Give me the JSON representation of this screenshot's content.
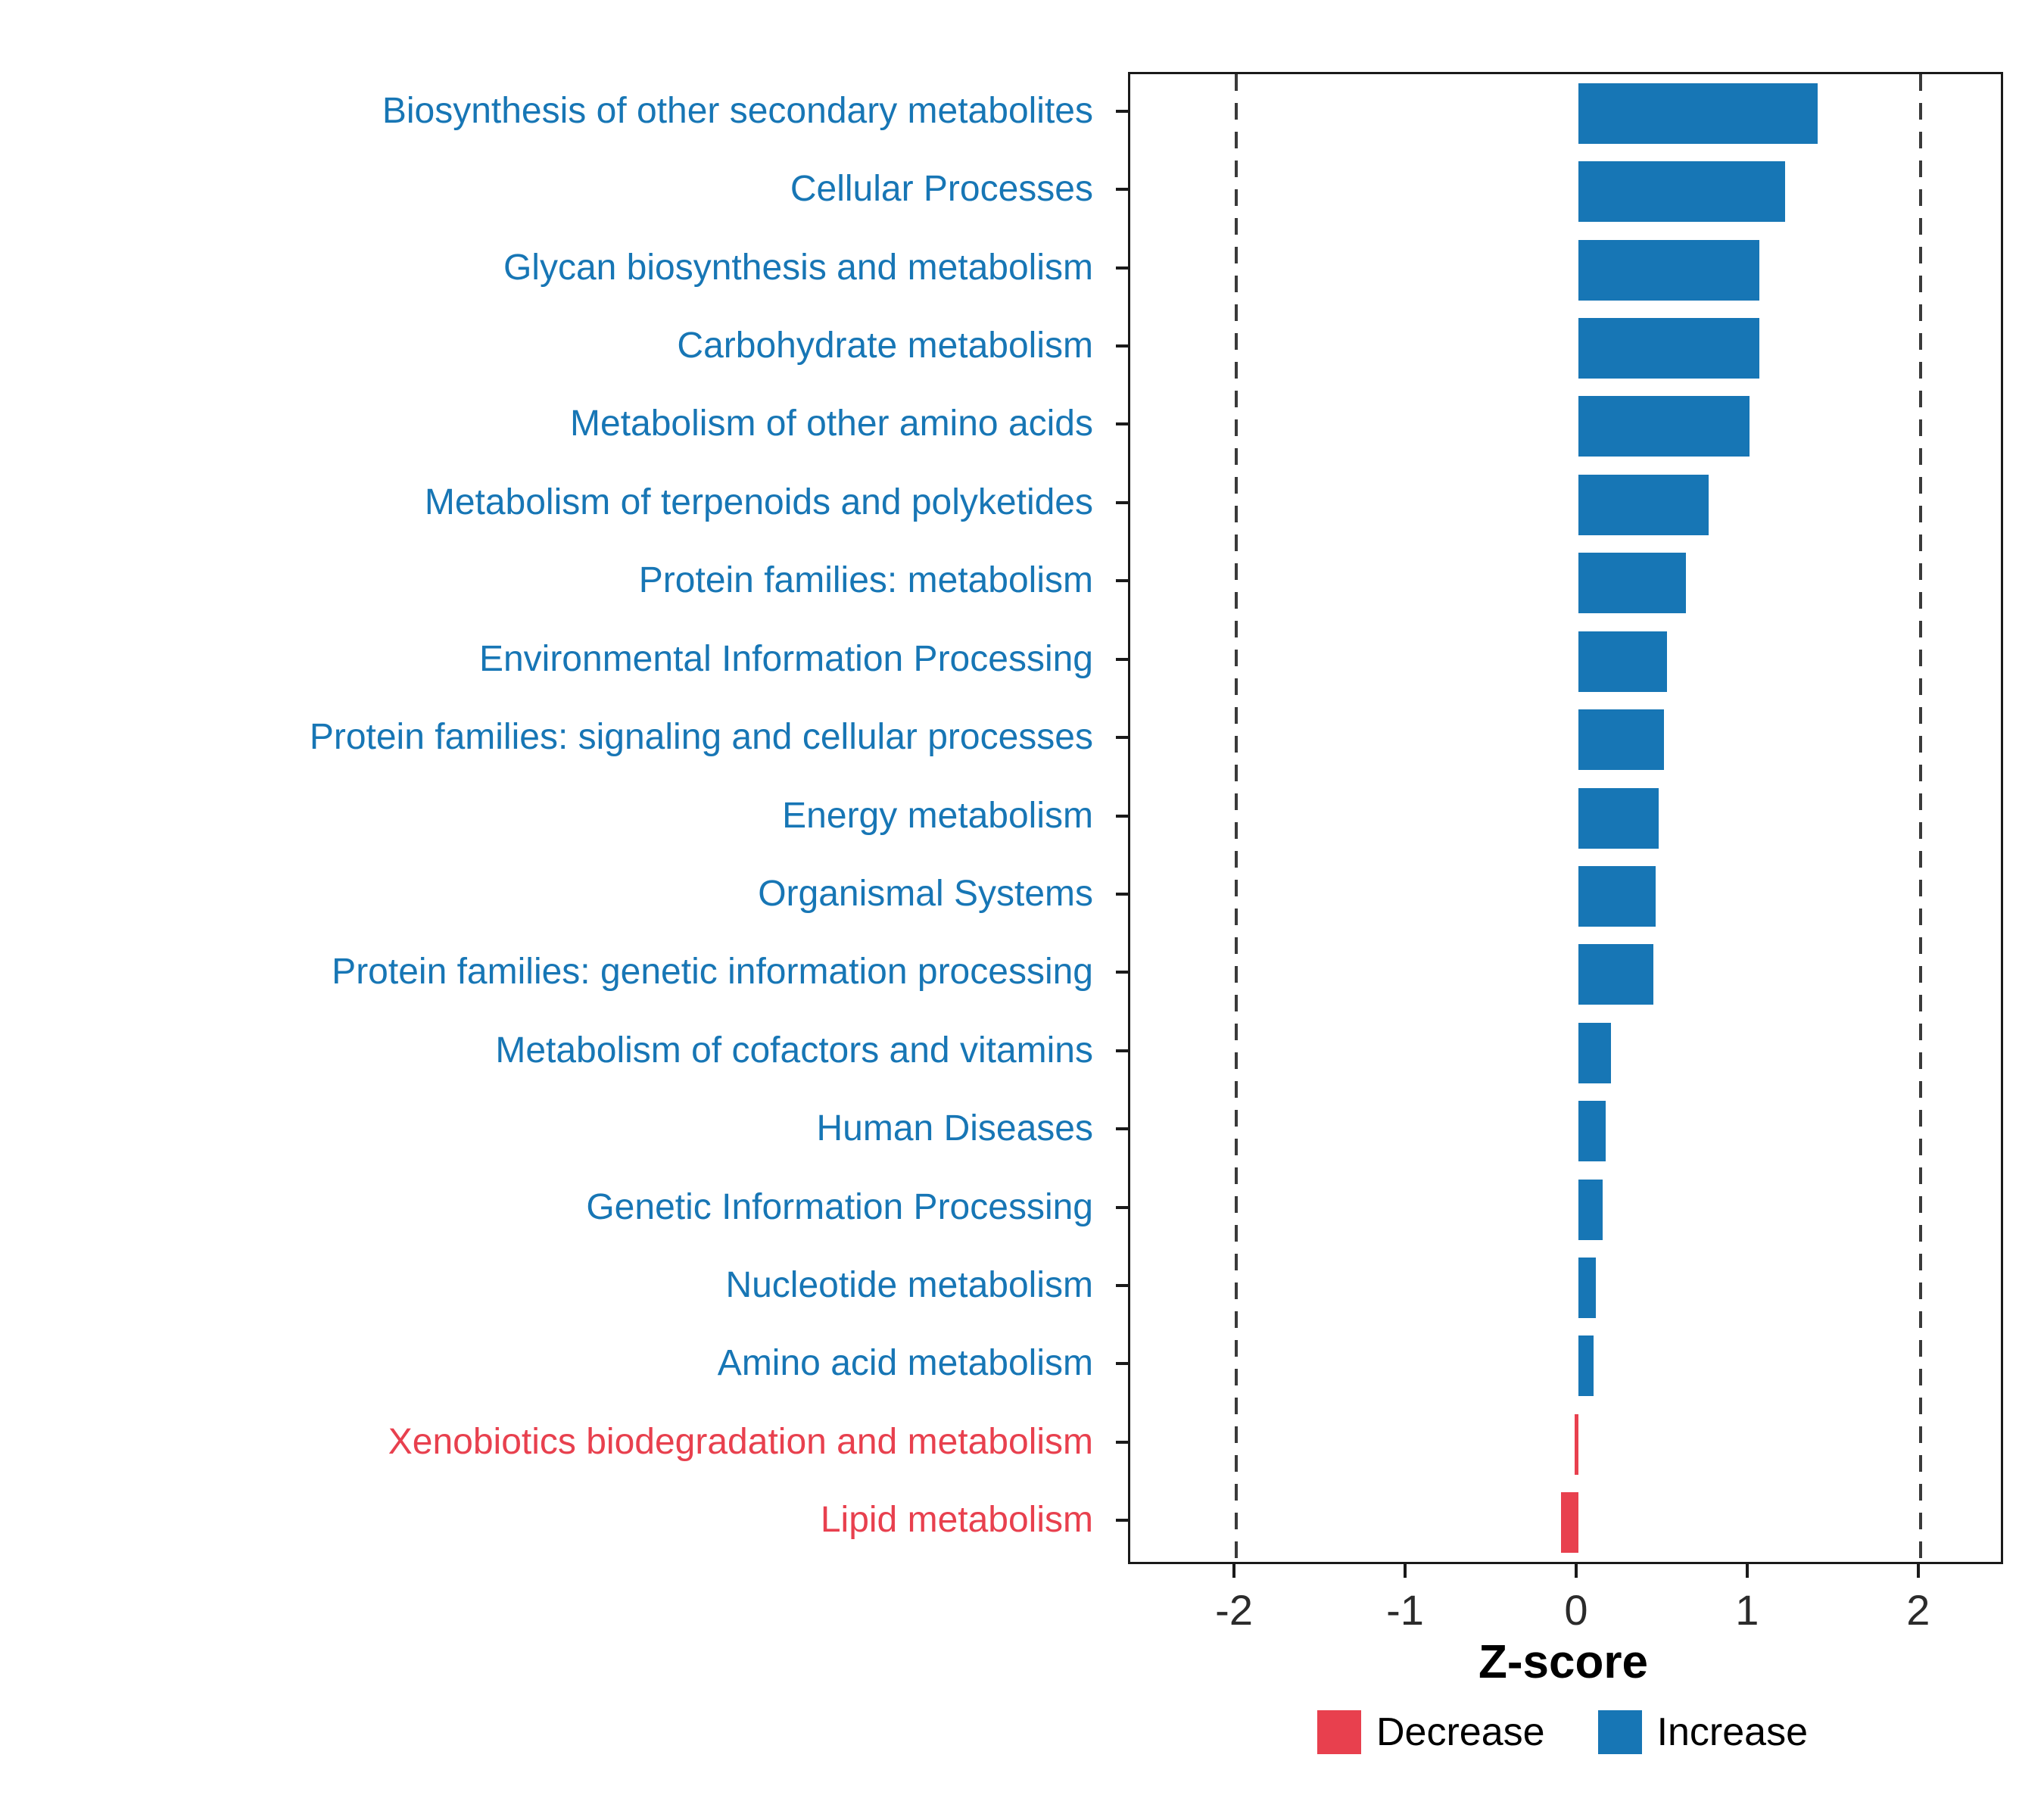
{
  "chart_data": {
    "type": "bar",
    "orientation": "horizontal",
    "title": "",
    "xlabel": "Z-score",
    "categories": [
      "Biosynthesis of other secondary metabolites",
      "Cellular Processes",
      "Glycan biosynthesis and metabolism",
      "Carbohydrate metabolism",
      "Metabolism of other amino acids",
      "Metabolism of terpenoids and polyketides",
      "Protein families: metabolism",
      "Environmental Information Processing",
      "Protein families: signaling and cellular processes",
      "Energy metabolism",
      "Organismal Systems",
      "Protein families: genetic information processing",
      "Metabolism of cofactors and vitamins",
      "Human Diseases",
      "Genetic Information Processing",
      "Nucleotide metabolism",
      "Amino acid metabolism",
      "Xenobiotics biodegradation and metabolism",
      "Lipid metabolism"
    ],
    "values": [
      1.4,
      1.21,
      1.06,
      1.06,
      1.0,
      0.76,
      0.63,
      0.52,
      0.5,
      0.47,
      0.45,
      0.44,
      0.19,
      0.16,
      0.14,
      0.1,
      0.09,
      -0.02,
      -0.1
    ],
    "groups": [
      "Increase",
      "Increase",
      "Increase",
      "Increase",
      "Increase",
      "Increase",
      "Increase",
      "Increase",
      "Increase",
      "Increase",
      "Increase",
      "Increase",
      "Increase",
      "Increase",
      "Increase",
      "Increase",
      "Increase",
      "Decrease",
      "Decrease"
    ],
    "xlim": [
      -2.62,
      2.47
    ],
    "xticks": [
      -2,
      -1,
      0,
      1,
      2
    ],
    "xtick_labels": [
      "-2",
      "-1",
      "0",
      "1",
      "2"
    ],
    "dashed_lines": [
      -2,
      2
    ],
    "grid": false,
    "legend_position": "bottom-right",
    "colors": {
      "Increase": "#1776B5",
      "Decrease": "#E8404E"
    },
    "legend": [
      {
        "label": "Decrease",
        "group": "Decrease"
      },
      {
        "label": "Increase",
        "group": "Increase"
      }
    ]
  }
}
